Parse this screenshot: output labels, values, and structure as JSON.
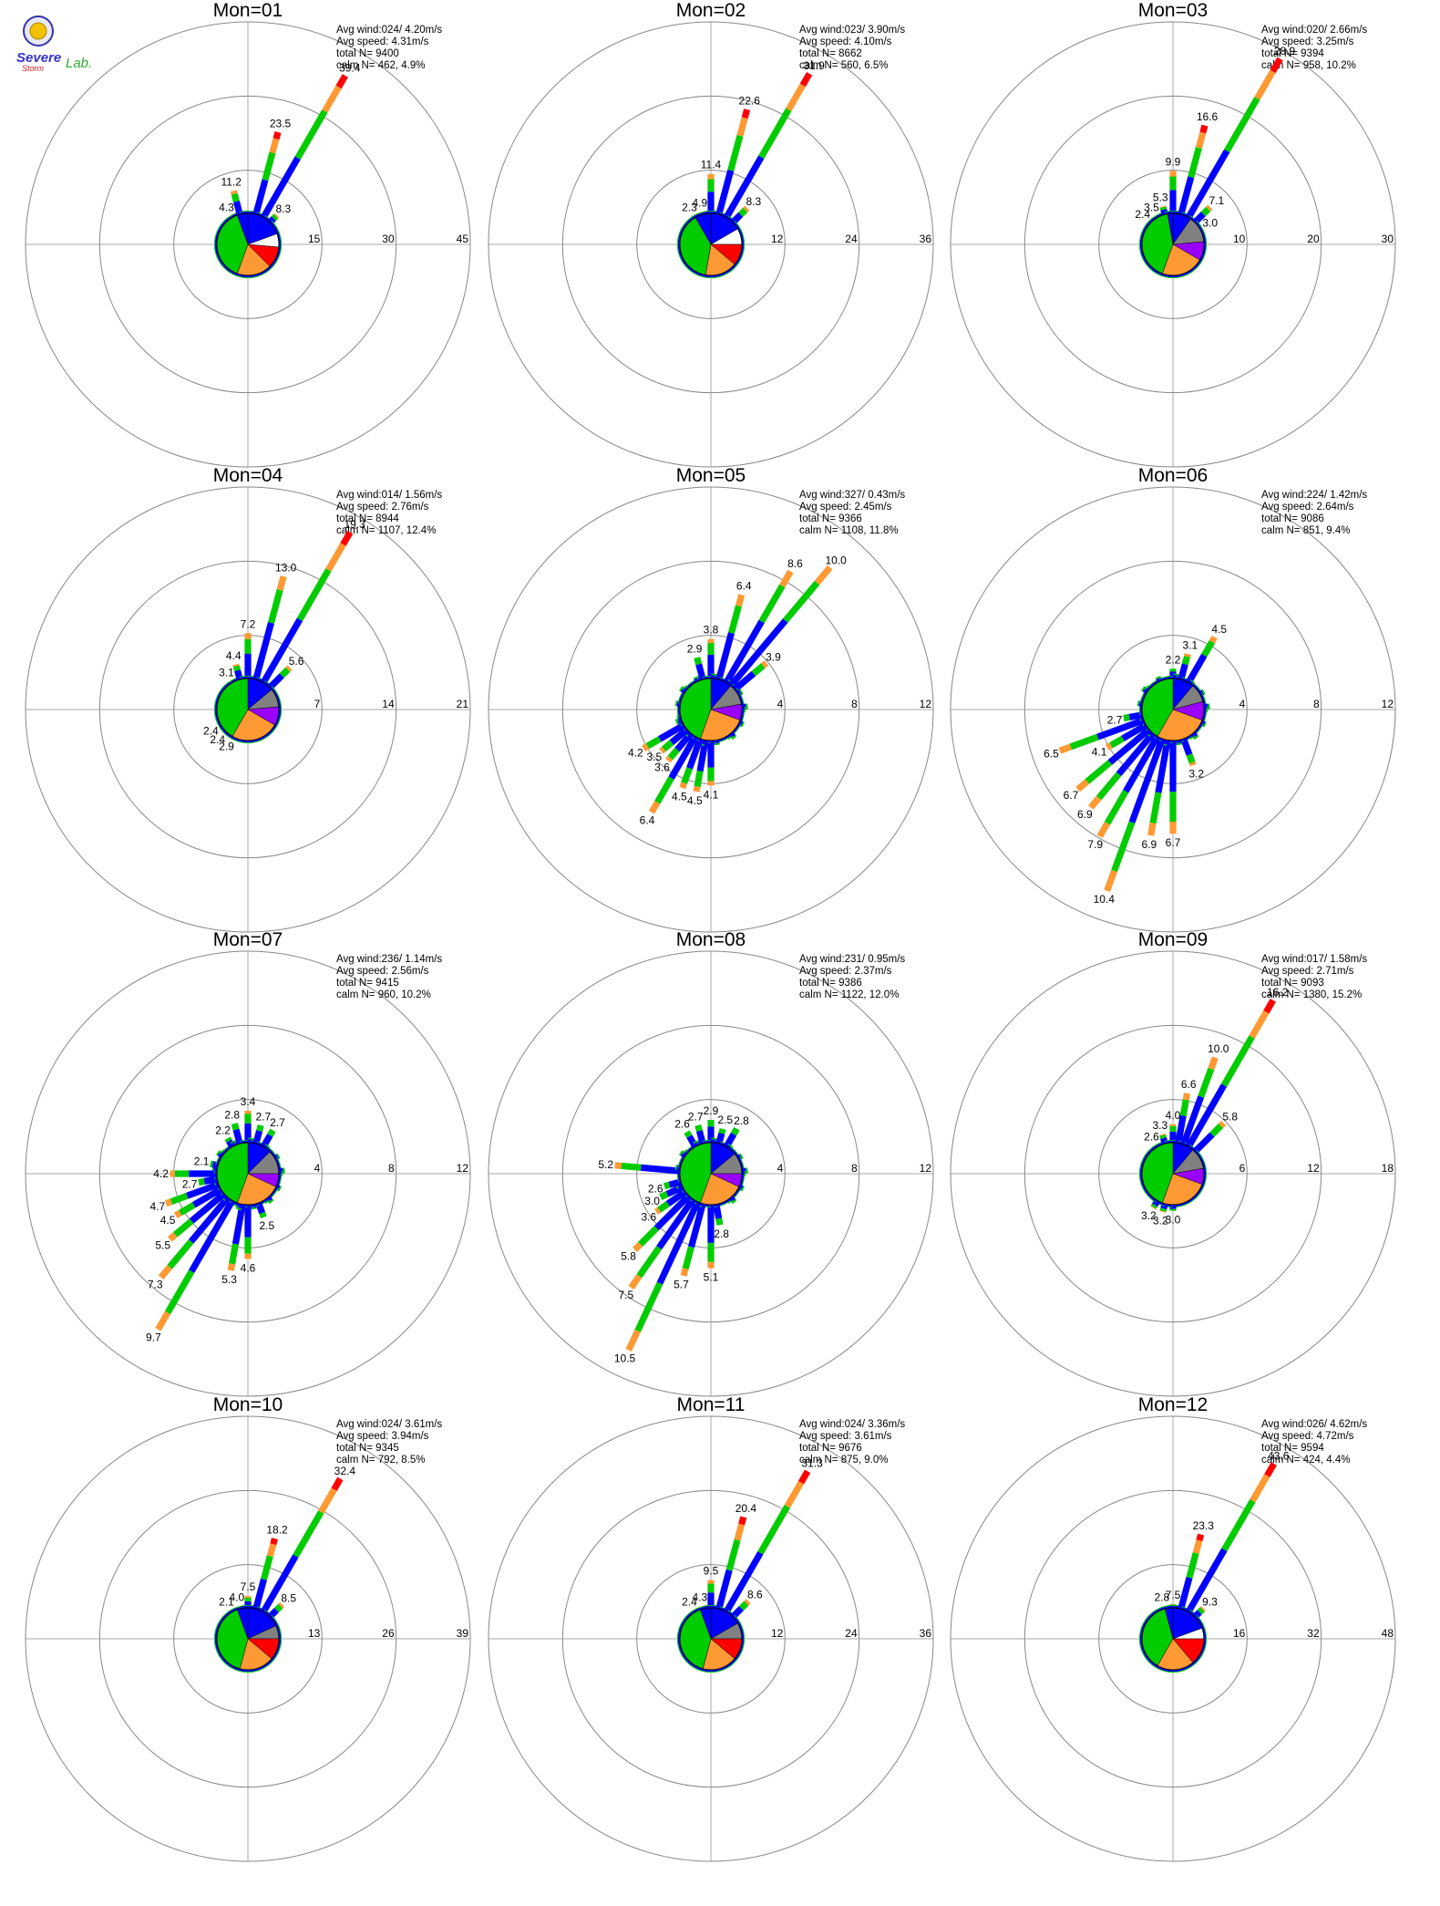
{
  "logo": {
    "text_top": "Severe",
    "text_mid": "Storm",
    "text_lab": "Lab."
  },
  "colors": {
    "speed_bins": [
      "#0000ff",
      "#00cc00",
      "#ff9933",
      "#ff0000",
      "#9900ff"
    ],
    "calm_sector": "#808080",
    "ring": "#888888",
    "axis": "#aaaaaa",
    "text": "#000000"
  },
  "chart_data": [
    {
      "title": "Mon=01",
      "type": "windrose",
      "stats": [
        "Avg wind:024/ 4.20m/s",
        "Avg speed: 4.31m/s",
        "total N=      9400",
        "calm N=     462,   4.9%"
      ],
      "ring_labels": [
        "15",
        "30",
        "45"
      ],
      "rmax": 45,
      "major_bars": [
        {
          "dir": 330,
          "val": 4.3
        },
        {
          "dir": 345,
          "val": 11.2
        },
        {
          "dir": 15,
          "val": 23.5
        },
        {
          "dir": 30,
          "val": 39.4
        },
        {
          "dir": 45,
          "val": 8.3
        }
      ],
      "minor_level": 2.0,
      "pie": [
        {
          "start": 0,
          "end": 70,
          "c": 0
        },
        {
          "start": 70,
          "end": 95,
          "c": 5
        },
        {
          "start": 95,
          "end": 135,
          "c": 3
        },
        {
          "start": 135,
          "end": 200,
          "c": 2
        },
        {
          "start": 200,
          "end": 340,
          "c": 1
        },
        {
          "start": 340,
          "end": 360,
          "c": 0
        }
      ]
    },
    {
      "title": "Mon=02",
      "type": "windrose",
      "stats": [
        "Avg wind:023/ 3.90m/s",
        "Avg speed: 4.10m/s",
        "total N=      8662",
        "calm N=     560,   6.5%"
      ],
      "ring_labels": [
        "12",
        "24",
        "36"
      ],
      "rmax": 36,
      "major_bars": [
        {
          "dir": 330,
          "val": 2.3
        },
        {
          "dir": 345,
          "val": 4.9
        },
        {
          "dir": 0,
          "val": 11.4
        },
        {
          "dir": 15,
          "val": 22.6
        },
        {
          "dir": 30,
          "val": 31.9
        },
        {
          "dir": 45,
          "val": 8.3
        }
      ],
      "minor_level": 1.6,
      "pie": [
        {
          "start": 0,
          "end": 60,
          "c": 0
        },
        {
          "start": 60,
          "end": 90,
          "c": 5
        },
        {
          "start": 90,
          "end": 130,
          "c": 3
        },
        {
          "start": 130,
          "end": 190,
          "c": 2
        },
        {
          "start": 190,
          "end": 330,
          "c": 1
        },
        {
          "start": 330,
          "end": 360,
          "c": 0
        }
      ]
    },
    {
      "title": "Mon=03",
      "type": "windrose",
      "stats": [
        "Avg wind:020/ 2.66m/s",
        "Avg speed: 3.25m/s",
        "total N=      9394",
        "calm N=     958,  10.2%"
      ],
      "ring_labels": [
        "10",
        "20",
        "30"
      ],
      "rmax": 30,
      "major_bars": [
        {
          "dir": 315,
          "val": 2.4
        },
        {
          "dir": 330,
          "val": 3.5
        },
        {
          "dir": 345,
          "val": 5.3
        },
        {
          "dir": 0,
          "val": 9.9
        },
        {
          "dir": 15,
          "val": 16.6
        },
        {
          "dir": 30,
          "val": 28.9
        },
        {
          "dir": 45,
          "val": 7.1
        },
        {
          "dir": 60,
          "val": 3.0
        }
      ],
      "minor_level": 1.4,
      "pie": [
        {
          "start": 0,
          "end": 35,
          "c": 0
        },
        {
          "start": 35,
          "end": 85,
          "c": 6
        },
        {
          "start": 85,
          "end": 120,
          "c": 4
        },
        {
          "start": 120,
          "end": 200,
          "c": 2
        },
        {
          "start": 200,
          "end": 350,
          "c": 1
        },
        {
          "start": 350,
          "end": 360,
          "c": 0
        }
      ]
    },
    {
      "title": "Mon=04",
      "type": "windrose",
      "stats": [
        "Avg wind:014/ 1.56m/s",
        "Avg speed: 2.76m/s",
        "total N=      8944",
        "calm N=    1107,  12.4%"
      ],
      "ring_labels": [
        "7",
        "14",
        "21"
      ],
      "rmax": 21,
      "major_bars": [
        {
          "dir": 330,
          "val": 3.1
        },
        {
          "dir": 345,
          "val": 4.4
        },
        {
          "dir": 0,
          "val": 7.2
        },
        {
          "dir": 15,
          "val": 13.0
        },
        {
          "dir": 30,
          "val": 19.3
        },
        {
          "dir": 45,
          "val": 5.6
        },
        {
          "dir": 240,
          "val": 2.4
        },
        {
          "dir": 225,
          "val": 2.4
        },
        {
          "dir": 210,
          "val": 2.9
        }
      ],
      "minor_level": 2.2,
      "pie": [
        {
          "start": 0,
          "end": 50,
          "c": 0
        },
        {
          "start": 50,
          "end": 85,
          "c": 6
        },
        {
          "start": 85,
          "end": 120,
          "c": 4
        },
        {
          "start": 120,
          "end": 210,
          "c": 2
        },
        {
          "start": 210,
          "end": 360,
          "c": 1
        }
      ]
    },
    {
      "title": "Mon=05",
      "type": "windrose",
      "stats": [
        "Avg wind:327/ 0.43m/s",
        "Avg speed: 2.45m/s",
        "total N=      9366",
        "calm N=    1108,  11.8%"
      ],
      "ring_labels": [
        "4",
        "8",
        "12"
      ],
      "rmax": 12,
      "major_bars": [
        {
          "dir": 345,
          "val": 2.9
        },
        {
          "dir": 0,
          "val": 3.8
        },
        {
          "dir": 15,
          "val": 6.4
        },
        {
          "dir": 30,
          "val": 8.6
        },
        {
          "dir": 40,
          "val": 10.0
        },
        {
          "dir": 50,
          "val": 3.9
        },
        {
          "dir": 240,
          "val": 4.2
        },
        {
          "dir": 230,
          "val": 3.5
        },
        {
          "dir": 220,
          "val": 3.6
        },
        {
          "dir": 210,
          "val": 6.4
        },
        {
          "dir": 200,
          "val": 4.5
        },
        {
          "dir": 190,
          "val": 4.5
        },
        {
          "dir": 180,
          "val": 4.1
        }
      ],
      "minor_level": 2.0,
      "pie": [
        {
          "start": 0,
          "end": 40,
          "c": 0
        },
        {
          "start": 40,
          "end": 80,
          "c": 6
        },
        {
          "start": 80,
          "end": 110,
          "c": 4
        },
        {
          "start": 110,
          "end": 200,
          "c": 2
        },
        {
          "start": 200,
          "end": 360,
          "c": 1
        }
      ]
    },
    {
      "title": "Mon=06",
      "type": "windrose",
      "stats": [
        "Avg wind:224/ 1.42m/s",
        "Avg speed: 2.64m/s",
        "total N=      9086",
        "calm N=     851,   9.4%"
      ],
      "ring_labels": [
        "4",
        "8",
        "12"
      ],
      "rmax": 12,
      "major_bars": [
        {
          "dir": 0,
          "val": 2.2
        },
        {
          "dir": 15,
          "val": 3.1
        },
        {
          "dir": 30,
          "val": 4.5
        },
        {
          "dir": 250,
          "val": 6.5
        },
        {
          "dir": 260,
          "val": 2.7
        },
        {
          "dir": 240,
          "val": 4.1
        },
        {
          "dir": 230,
          "val": 6.7
        },
        {
          "dir": 220,
          "val": 6.9
        },
        {
          "dir": 210,
          "val": 7.9
        },
        {
          "dir": 200,
          "val": 10.4
        },
        {
          "dir": 190,
          "val": 6.9
        },
        {
          "dir": 180,
          "val": 6.7
        },
        {
          "dir": 160,
          "val": 3.2
        }
      ],
      "minor_level": 2.0,
      "pie": [
        {
          "start": 0,
          "end": 40,
          "c": 0
        },
        {
          "start": 40,
          "end": 75,
          "c": 6
        },
        {
          "start": 75,
          "end": 110,
          "c": 4
        },
        {
          "start": 110,
          "end": 210,
          "c": 2
        },
        {
          "start": 210,
          "end": 360,
          "c": 1
        }
      ]
    },
    {
      "title": "Mon=07",
      "type": "windrose",
      "stats": [
        "Avg wind:236/ 1.14m/s",
        "Avg speed: 2.56m/s",
        "total N=      9415",
        "calm N=     960,  10.2%"
      ],
      "ring_labels": [
        "4",
        "8",
        "12"
      ],
      "rmax": 12,
      "major_bars": [
        {
          "dir": 330,
          "val": 2.2
        },
        {
          "dir": 345,
          "val": 2.8
        },
        {
          "dir": 0,
          "val": 3.4
        },
        {
          "dir": 15,
          "val": 2.7
        },
        {
          "dir": 30,
          "val": 2.7
        },
        {
          "dir": 270,
          "val": 4.2
        },
        {
          "dir": 285,
          "val": 2.1
        },
        {
          "dir": 260,
          "val": 2.7
        },
        {
          "dir": 250,
          "val": 4.7
        },
        {
          "dir": 240,
          "val": 4.5
        },
        {
          "dir": 230,
          "val": 5.5
        },
        {
          "dir": 220,
          "val": 7.3
        },
        {
          "dir": 210,
          "val": 9.7
        },
        {
          "dir": 190,
          "val": 5.3
        },
        {
          "dir": 180,
          "val": 4.6
        },
        {
          "dir": 160,
          "val": 2.5
        }
      ],
      "minor_level": 2.0,
      "pie": [
        {
          "start": 0,
          "end": 45,
          "c": 0
        },
        {
          "start": 45,
          "end": 90,
          "c": 6
        },
        {
          "start": 90,
          "end": 115,
          "c": 4
        },
        {
          "start": 115,
          "end": 200,
          "c": 2
        },
        {
          "start": 200,
          "end": 360,
          "c": 1
        }
      ]
    },
    {
      "title": "Mon=08",
      "type": "windrose",
      "stats": [
        "Avg wind:231/ 0.95m/s",
        "Avg speed: 2.37m/s",
        "total N=      9386",
        "calm N=    1122,  12.0%"
      ],
      "ring_labels": [
        "4",
        "8",
        "12"
      ],
      "rmax": 12,
      "major_bars": [
        {
          "dir": 330,
          "val": 2.6
        },
        {
          "dir": 345,
          "val": 2.7
        },
        {
          "dir": 0,
          "val": 2.9
        },
        {
          "dir": 15,
          "val": 2.5
        },
        {
          "dir": 30,
          "val": 2.8
        },
        {
          "dir": 275,
          "val": 5.2
        },
        {
          "dir": 255,
          "val": 2.6
        },
        {
          "dir": 245,
          "val": 3.0
        },
        {
          "dir": 235,
          "val": 3.6
        },
        {
          "dir": 225,
          "val": 5.8
        },
        {
          "dir": 215,
          "val": 7.5
        },
        {
          "dir": 205,
          "val": 10.5
        },
        {
          "dir": 195,
          "val": 5.7
        },
        {
          "dir": 180,
          "val": 5.1
        },
        {
          "dir": 170,
          "val": 2.8
        }
      ],
      "minor_level": 2.0,
      "pie": [
        {
          "start": 0,
          "end": 50,
          "c": 0
        },
        {
          "start": 50,
          "end": 90,
          "c": 6
        },
        {
          "start": 90,
          "end": 115,
          "c": 4
        },
        {
          "start": 115,
          "end": 200,
          "c": 2
        },
        {
          "start": 200,
          "end": 360,
          "c": 1
        }
      ]
    },
    {
      "title": "Mon=09",
      "type": "windrose",
      "stats": [
        "Avg wind:017/ 1.58m/s",
        "Avg speed: 2.71m/s",
        "total N=      9093",
        "calm N=    1380,  15.2%"
      ],
      "ring_labels": [
        "6",
        "12",
        "18"
      ],
      "rmax": 18,
      "major_bars": [
        {
          "dir": 330,
          "val": 2.6
        },
        {
          "dir": 345,
          "val": 3.3
        },
        {
          "dir": 0,
          "val": 4.0
        },
        {
          "dir": 10,
          "val": 6.6
        },
        {
          "dir": 20,
          "val": 10.0
        },
        {
          "dir": 30,
          "val": 16.2
        },
        {
          "dir": 45,
          "val": 5.8
        },
        {
          "dir": 210,
          "val": 3.2
        },
        {
          "dir": 195,
          "val": 3.2
        },
        {
          "dir": 180,
          "val": 3.0
        }
      ],
      "minor_level": 2.0,
      "pie": [
        {
          "start": 0,
          "end": 40,
          "c": 0
        },
        {
          "start": 40,
          "end": 80,
          "c": 6
        },
        {
          "start": 80,
          "end": 110,
          "c": 4
        },
        {
          "start": 110,
          "end": 200,
          "c": 2
        },
        {
          "start": 200,
          "end": 360,
          "c": 1
        }
      ]
    },
    {
      "title": "Mon=10",
      "type": "windrose",
      "stats": [
        "Avg wind:024/ 3.61m/s",
        "Avg speed: 3.94m/s",
        "total N=      9345",
        "calm N=     792,   8.5%"
      ],
      "ring_labels": [
        "13",
        "26",
        "39"
      ],
      "rmax": 39,
      "major_bars": [
        {
          "dir": 330,
          "val": 2.1
        },
        {
          "dir": 345,
          "val": 4.0
        },
        {
          "dir": 0,
          "val": 7.5
        },
        {
          "dir": 15,
          "val": 18.2
        },
        {
          "dir": 30,
          "val": 32.4
        },
        {
          "dir": 45,
          "val": 8.5
        }
      ],
      "minor_level": 1.6,
      "pie": [
        {
          "start": 0,
          "end": 65,
          "c": 0
        },
        {
          "start": 65,
          "end": 90,
          "c": 6
        },
        {
          "start": 90,
          "end": 130,
          "c": 3
        },
        {
          "start": 130,
          "end": 195,
          "c": 2
        },
        {
          "start": 195,
          "end": 340,
          "c": 1
        },
        {
          "start": 340,
          "end": 360,
          "c": 0
        }
      ]
    },
    {
      "title": "Mon=11",
      "type": "windrose",
      "stats": [
        "Avg wind:024/ 3.36m/s",
        "Avg speed: 3.61m/s",
        "total N=      9676",
        "calm N=     875,   9.0%"
      ],
      "ring_labels": [
        "12",
        "24",
        "36"
      ],
      "rmax": 36,
      "major_bars": [
        {
          "dir": 330,
          "val": 2.4
        },
        {
          "dir": 345,
          "val": 4.3
        },
        {
          "dir": 0,
          "val": 9.5
        },
        {
          "dir": 15,
          "val": 20.4
        },
        {
          "dir": 30,
          "val": 31.3
        },
        {
          "dir": 45,
          "val": 8.6
        }
      ],
      "minor_level": 1.6,
      "pie": [
        {
          "start": 0,
          "end": 60,
          "c": 0
        },
        {
          "start": 60,
          "end": 90,
          "c": 6
        },
        {
          "start": 90,
          "end": 130,
          "c": 3
        },
        {
          "start": 130,
          "end": 195,
          "c": 2
        },
        {
          "start": 195,
          "end": 340,
          "c": 1
        },
        {
          "start": 340,
          "end": 360,
          "c": 0
        }
      ]
    },
    {
      "title": "Mon=12",
      "type": "windrose",
      "stats": [
        "Avg wind:026/ 4.62m/s",
        "Avg speed: 4.72m/s",
        "total N=      9594",
        "calm N=     424,   4.4%"
      ],
      "ring_labels": [
        "16",
        "32",
        "48"
      ],
      "rmax": 48,
      "major_bars": [
        {
          "dir": 345,
          "val": 2.8
        },
        {
          "dir": 0,
          "val": 7.5
        },
        {
          "dir": 15,
          "val": 23.3
        },
        {
          "dir": 30,
          "val": 43.6
        },
        {
          "dir": 45,
          "val": 9.3
        }
      ],
      "minor_level": 2.0,
      "pie": [
        {
          "start": 0,
          "end": 70,
          "c": 0
        },
        {
          "start": 70,
          "end": 90,
          "c": 5
        },
        {
          "start": 90,
          "end": 140,
          "c": 3
        },
        {
          "start": 140,
          "end": 210,
          "c": 2
        },
        {
          "start": 210,
          "end": 345,
          "c": 1
        },
        {
          "start": 345,
          "end": 360,
          "c": 0
        }
      ]
    }
  ]
}
